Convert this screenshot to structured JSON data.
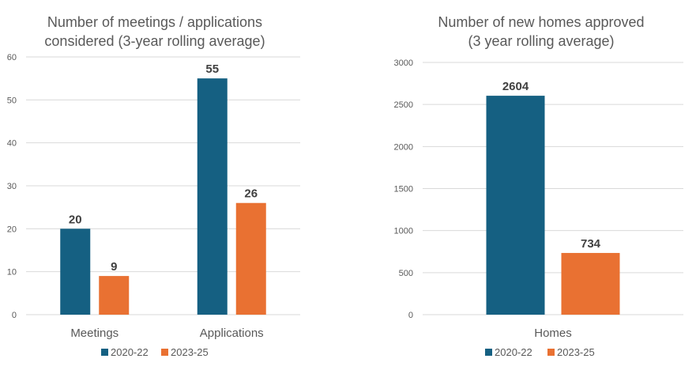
{
  "chart_data": [
    {
      "type": "bar",
      "title": [
        "Number of meetings / applications",
        "considered (3-year rolling average)"
      ],
      "categories": [
        "Meetings",
        "Applications"
      ],
      "series": [
        {
          "name": "2020-22",
          "values": [
            20,
            55
          ],
          "labels": [
            "20",
            "55"
          ],
          "color": "#156082"
        },
        {
          "name": "2023-25",
          "values": [
            9,
            26
          ],
          "labels": [
            "9",
            "26"
          ],
          "color": "#E97132"
        }
      ],
      "ylim": [
        0,
        60
      ],
      "yticks": [
        0,
        10,
        20,
        30,
        40,
        50,
        60
      ],
      "grid": true,
      "legend": "bottom"
    },
    {
      "type": "bar",
      "title": [
        "Number of new homes approved",
        "(3 year rolling average)"
      ],
      "categories": [
        "Homes"
      ],
      "series": [
        {
          "name": "2020-22",
          "values": [
            2604
          ],
          "labels": [
            "2604"
          ],
          "color": "#156082"
        },
        {
          "name": "2023-25",
          "values": [
            734
          ],
          "labels": [
            "734"
          ],
          "color": "#E97132"
        }
      ],
      "ylim": [
        0,
        3000
      ],
      "yticks": [
        0,
        500,
        1000,
        1500,
        2000,
        2500,
        3000
      ],
      "grid": true,
      "legend": "bottom"
    }
  ]
}
